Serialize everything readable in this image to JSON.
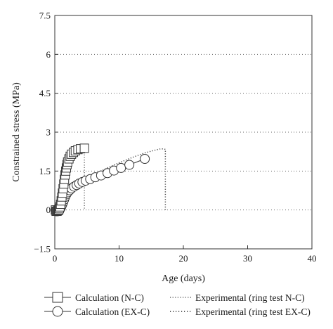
{
  "chart_data": {
    "type": "scatter",
    "xlabel": "Age (days)",
    "ylabel": "Constrained stress (MPa)",
    "xlim": [
      0,
      40
    ],
    "ylim": [
      -1.5,
      7.5
    ],
    "xticks": [
      0,
      10,
      20,
      30,
      40
    ],
    "yticks": [
      -1.5,
      0,
      1.5,
      3,
      4.5,
      6,
      7.5
    ],
    "xtick_labels": [
      "0",
      "10",
      "20",
      "30",
      "40"
    ],
    "ytick_labels": [
      "−1.5",
      "0",
      "1.5",
      "3",
      "4.5",
      "6",
      "7.5"
    ],
    "grid": "horizontal-dotted",
    "legend_position": "bottom",
    "series": [
      {
        "name": "Calculation (N-C)",
        "style": "line-square-markers",
        "color": "#333333",
        "points": [
          [
            0.1,
            0.0
          ],
          [
            0.2,
            -0.05
          ],
          [
            0.3,
            -0.05
          ],
          [
            0.4,
            -0.04
          ],
          [
            0.5,
            -0.02
          ],
          [
            0.6,
            0.0
          ],
          [
            0.7,
            0.05
          ],
          [
            0.8,
            0.12
          ],
          [
            0.9,
            0.22
          ],
          [
            1.0,
            0.35
          ],
          [
            1.1,
            0.5
          ],
          [
            1.2,
            0.65
          ],
          [
            1.3,
            0.82
          ],
          [
            1.4,
            1.0
          ],
          [
            1.5,
            1.18
          ],
          [
            1.6,
            1.35
          ],
          [
            1.7,
            1.5
          ],
          [
            1.8,
            1.62
          ],
          [
            1.9,
            1.75
          ],
          [
            2.0,
            1.85
          ],
          [
            2.2,
            1.97
          ],
          [
            2.4,
            2.07
          ],
          [
            2.6,
            2.15
          ],
          [
            2.9,
            2.22
          ],
          [
            3.2,
            2.28
          ],
          [
            3.6,
            2.33
          ],
          [
            4.0,
            2.36
          ],
          [
            4.6,
            2.38
          ]
        ]
      },
      {
        "name": "Calculation (EX-C)",
        "style": "line-circle-markers",
        "color": "#333333",
        "points": [
          [
            0.1,
            0.0
          ],
          [
            0.25,
            -0.05
          ],
          [
            0.4,
            -0.05
          ],
          [
            0.55,
            -0.03
          ],
          [
            0.7,
            0.0
          ],
          [
            0.85,
            0.05
          ],
          [
            1.0,
            0.12
          ],
          [
            1.15,
            0.2
          ],
          [
            1.3,
            0.3
          ],
          [
            1.45,
            0.4
          ],
          [
            1.6,
            0.5
          ],
          [
            1.8,
            0.6
          ],
          [
            2.0,
            0.68
          ],
          [
            2.3,
            0.76
          ],
          [
            2.6,
            0.83
          ],
          [
            3.0,
            0.9
          ],
          [
            3.4,
            0.96
          ],
          [
            3.8,
            1.02
          ],
          [
            4.3,
            1.08
          ],
          [
            4.8,
            1.13
          ],
          [
            5.5,
            1.19
          ],
          [
            6.3,
            1.26
          ],
          [
            7.2,
            1.33
          ],
          [
            8.2,
            1.42
          ],
          [
            9.2,
            1.52
          ],
          [
            10.3,
            1.62
          ],
          [
            11.6,
            1.74
          ],
          [
            14.0,
            1.97
          ]
        ]
      },
      {
        "name": "Experimental (ring test N-C)",
        "style": "dotted-line",
        "color": "#444444",
        "points": [
          [
            0.0,
            0.0
          ],
          [
            0.5,
            0.1
          ],
          [
            1.0,
            0.45
          ],
          [
            1.5,
            0.95
          ],
          [
            2.0,
            1.45
          ],
          [
            2.5,
            1.75
          ],
          [
            3.0,
            1.95
          ],
          [
            3.5,
            2.1
          ],
          [
            4.0,
            2.2
          ],
          [
            4.6,
            2.24
          ],
          [
            4.6,
            0.0
          ]
        ]
      },
      {
        "name": "Experimental (ring test EX-C)",
        "style": "dotted-line",
        "color": "#444444",
        "points": [
          [
            0.0,
            0.0
          ],
          [
            1.0,
            0.2
          ],
          [
            2.0,
            0.55
          ],
          [
            3.0,
            0.85
          ],
          [
            4.0,
            1.05
          ],
          [
            5.0,
            1.2
          ],
          [
            6.0,
            1.35
          ],
          [
            8.0,
            1.6
          ],
          [
            10.0,
            1.82
          ],
          [
            12.0,
            2.02
          ],
          [
            14.0,
            2.2
          ],
          [
            15.5,
            2.3
          ],
          [
            16.5,
            2.36
          ],
          [
            17.2,
            2.34
          ],
          [
            17.2,
            0.0
          ]
        ]
      }
    ]
  }
}
